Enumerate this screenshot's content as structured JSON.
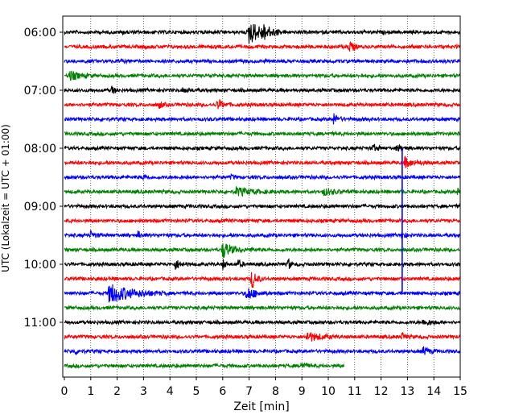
{
  "chart_data": {
    "type": "line",
    "xlabel": "Zeit  [min]",
    "ylabel": "UTC (Lokalzeit = UTC + 01:00)",
    "xlim": [
      0,
      15
    ],
    "x_ticks": [
      "0",
      "1",
      "2",
      "3",
      "4",
      "5",
      "6",
      "7",
      "8",
      "9",
      "10",
      "11",
      "12",
      "13",
      "14",
      "15"
    ],
    "y_ticks": [
      "06:00",
      "07:00",
      "08:00",
      "09:00",
      "10:00",
      "11:00"
    ],
    "grid": "vertical dotted",
    "colors": {
      "black": "#000000",
      "red": "#ff0000",
      "blue": "#0000ff",
      "green": "#008000"
    },
    "color_cycle": [
      "black",
      "red",
      "blue",
      "green"
    ],
    "rows_per_hour": 4,
    "start_time": "06:00",
    "traces": [
      {
        "offset": "06:00",
        "color": "black",
        "end_min": 15,
        "events": [
          [
            7.0,
            3.2,
            0.8
          ],
          [
            7.5,
            1.5,
            0.6
          ],
          [
            2.2,
            0.3,
            0.3
          ]
        ]
      },
      {
        "offset": "06:15",
        "color": "red",
        "end_min": 15,
        "events": [
          [
            10.8,
            1.6,
            0.3
          ],
          [
            3.0,
            0.3,
            0.3
          ]
        ]
      },
      {
        "offset": "06:30",
        "color": "blue",
        "end_min": 15,
        "events": [
          [
            2.1,
            0.4,
            0.2
          ]
        ]
      },
      {
        "offset": "06:45",
        "color": "green",
        "end_min": 15,
        "events": [
          [
            0.2,
            1.2,
            0.6
          ],
          [
            5.5,
            0.4,
            0.3
          ]
        ]
      },
      {
        "offset": "07:00",
        "color": "black",
        "end_min": 15,
        "events": [
          [
            1.8,
            1.0,
            0.2
          ],
          [
            4.5,
            0.6,
            0.4
          ]
        ]
      },
      {
        "offset": "07:15",
        "color": "red",
        "end_min": 15,
        "events": [
          [
            3.6,
            1.0,
            0.2
          ],
          [
            5.8,
            1.3,
            0.4
          ]
        ]
      },
      {
        "offset": "07:30",
        "color": "blue",
        "end_min": 15,
        "events": [
          [
            10.2,
            1.4,
            0.3
          ]
        ]
      },
      {
        "offset": "07:45",
        "color": "green",
        "end_min": 15,
        "events": []
      },
      {
        "offset": "08:00",
        "color": "black",
        "end_min": 15,
        "events": [
          [
            11.7,
            0.9,
            0.3
          ],
          [
            12.6,
            0.7,
            0.5
          ]
        ]
      },
      {
        "offset": "08:15",
        "color": "red",
        "end_min": 15,
        "events": [
          [
            12.9,
            1.2,
            0.6
          ]
        ]
      },
      {
        "offset": "08:30",
        "color": "blue",
        "end_min": 15,
        "events": [
          [
            3.0,
            0.8,
            0.2
          ],
          [
            6.3,
            0.6,
            0.2
          ]
        ]
      },
      {
        "offset": "08:45",
        "color": "green",
        "end_min": 15,
        "events": [
          [
            6.5,
            1.0,
            1.2
          ],
          [
            9.8,
            0.8,
            0.8
          ],
          [
            14.9,
            0.8,
            0.2
          ]
        ]
      },
      {
        "offset": "09:00",
        "color": "black",
        "end_min": 15,
        "events": []
      },
      {
        "offset": "09:15",
        "color": "red",
        "end_min": 15,
        "events": []
      },
      {
        "offset": "09:30",
        "color": "blue",
        "end_min": 15,
        "events": [
          [
            1.0,
            1.0,
            0.3
          ],
          [
            2.8,
            1.0,
            0.2
          ],
          [
            12.8,
            1.2,
            0.2
          ]
        ]
      },
      {
        "offset": "09:45",
        "color": "green",
        "end_min": 15,
        "events": [
          [
            6.0,
            2.2,
            0.6
          ],
          [
            7.0,
            0.5,
            0.3
          ]
        ]
      },
      {
        "offset": "10:00",
        "color": "black",
        "end_min": 15,
        "events": [
          [
            4.2,
            1.2,
            0.4
          ],
          [
            6.0,
            1.3,
            0.2
          ],
          [
            6.6,
            1.1,
            0.2
          ],
          [
            8.5,
            2.0,
            0.1
          ]
        ]
      },
      {
        "offset": "10:15",
        "color": "red",
        "end_min": 15,
        "events": [
          [
            7.1,
            2.6,
            0.3
          ]
        ]
      },
      {
        "offset": "10:30",
        "color": "blue",
        "end_min": 15,
        "events": [
          [
            1.7,
            2.6,
            1.5
          ],
          [
            6.9,
            1.8,
            0.6
          ]
        ]
      },
      {
        "offset": "10:45",
        "color": "green",
        "end_min": 15,
        "events": []
      },
      {
        "offset": "11:00",
        "color": "black",
        "end_min": 15,
        "events": [
          [
            13.6,
            0.8,
            0.6
          ]
        ]
      },
      {
        "offset": "11:15",
        "color": "red",
        "end_min": 15,
        "events": [
          [
            9.2,
            1.2,
            0.9
          ],
          [
            12.8,
            1.0,
            0.2
          ]
        ]
      },
      {
        "offset": "11:30",
        "color": "blue",
        "end_min": 15,
        "events": [
          [
            0.4,
            0.7,
            0.3
          ],
          [
            13.6,
            1.0,
            0.4
          ]
        ]
      },
      {
        "offset": "11:45",
        "color": "green",
        "end_min": 10.6,
        "events": [
          [
            9.0,
            1.3,
            0.2
          ]
        ]
      }
    ],
    "vertical_spike": {
      "x_min": 12.8,
      "from": "08:00",
      "to": "10:30",
      "color": "blue"
    }
  }
}
